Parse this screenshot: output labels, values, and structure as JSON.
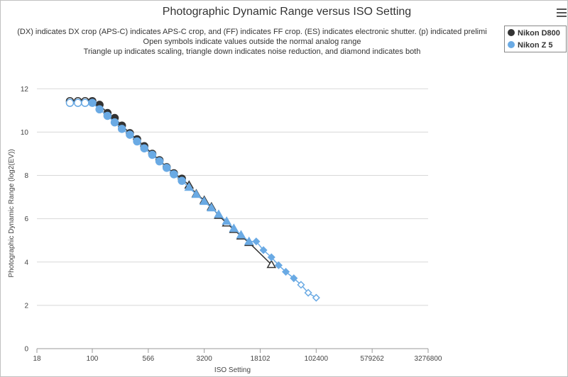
{
  "title": "Photographic Dynamic Range versus ISO Setting",
  "subtitle_lines": [
    "(DX) indicates DX crop (APS-C) indicates APS-C crop, and (FF) indicates FF crop. (ES) indicates electronic shutter. (p) indicated prelimi",
    "Open symbols indicate values outside the normal analog range",
    "Triangle up indicates scaling, triangle down indicates noise reduction, and diamond indicates both"
  ],
  "menu_icon": "hamburger-menu-icon",
  "legend": [
    {
      "label": "Nikon D800",
      "color": "#333333"
    },
    {
      "label": "Nikon Z 5",
      "color": "#6aaae4"
    }
  ],
  "chart_data": {
    "type": "scatter",
    "title": "Photographic Dynamic Range versus ISO Setting",
    "xlabel": "ISO Setting",
    "ylabel": "Photographic Dynamic Range (log2(EV))",
    "x_scale": "log2",
    "x_ticks": [
      18,
      100,
      566,
      3200,
      18102,
      102400,
      579262,
      3276800
    ],
    "y_ticks": [
      0,
      2,
      4,
      6,
      8,
      10,
      12
    ],
    "ylim": [
      0,
      12.5
    ],
    "grid": true,
    "legend_position": "top-right",
    "series": [
      {
        "name": "Nikon D800",
        "color": "#333333",
        "points": [
          {
            "x": 50,
            "y": 11.43,
            "m": "o-open"
          },
          {
            "x": 64,
            "y": 11.43,
            "m": "o-open"
          },
          {
            "x": 80,
            "y": 11.43,
            "m": "o-open"
          },
          {
            "x": 100,
            "y": 11.43,
            "m": "o"
          },
          {
            "x": 125,
            "y": 11.26,
            "m": "o"
          },
          {
            "x": 160,
            "y": 10.88,
            "m": "o"
          },
          {
            "x": 200,
            "y": 10.65,
            "m": "o"
          },
          {
            "x": 250,
            "y": 10.3,
            "m": "o"
          },
          {
            "x": 320,
            "y": 9.95,
            "m": "o"
          },
          {
            "x": 400,
            "y": 9.67,
            "m": "o"
          },
          {
            "x": 500,
            "y": 9.35,
            "m": "o"
          },
          {
            "x": 640,
            "y": 9.0,
            "m": "o"
          },
          {
            "x": 800,
            "y": 8.7,
            "m": "o"
          },
          {
            "x": 1000,
            "y": 8.38,
            "m": "o"
          },
          {
            "x": 1250,
            "y": 8.1,
            "m": "o"
          },
          {
            "x": 1600,
            "y": 7.85,
            "m": "o"
          },
          {
            "x": 2000,
            "y": 7.55,
            "m": "tri-up-open"
          },
          {
            "x": 2500,
            "y": 7.15,
            "m": "tri-up-open"
          },
          {
            "x": 3200,
            "y": 6.85,
            "m": "tri-up-open"
          },
          {
            "x": 4000,
            "y": 6.55,
            "m": "tri-up-open"
          },
          {
            "x": 5000,
            "y": 6.15,
            "m": "tri-up-open"
          },
          {
            "x": 6400,
            "y": 5.8,
            "m": "tri-up-open"
          },
          {
            "x": 8000,
            "y": 5.5,
            "m": "tri-up-open"
          },
          {
            "x": 10000,
            "y": 5.2,
            "m": "tri-up-open"
          },
          {
            "x": 12800,
            "y": 4.9,
            "m": "tri-up-open"
          },
          {
            "x": 25600,
            "y": 3.88,
            "m": "tri-up-open"
          }
        ]
      },
      {
        "name": "Nikon Z 5",
        "color": "#6aaae4",
        "points": [
          {
            "x": 50,
            "y": 11.35,
            "m": "o-open"
          },
          {
            "x": 64,
            "y": 11.35,
            "m": "o-open"
          },
          {
            "x": 80,
            "y": 11.35,
            "m": "o-open"
          },
          {
            "x": 100,
            "y": 11.35,
            "m": "o"
          },
          {
            "x": 125,
            "y": 11.05,
            "m": "o"
          },
          {
            "x": 160,
            "y": 10.75,
            "m": "o"
          },
          {
            "x": 200,
            "y": 10.45,
            "m": "o"
          },
          {
            "x": 250,
            "y": 10.15,
            "m": "o"
          },
          {
            "x": 320,
            "y": 9.88,
            "m": "o"
          },
          {
            "x": 400,
            "y": 9.57,
            "m": "o"
          },
          {
            "x": 500,
            "y": 9.25,
            "m": "o"
          },
          {
            "x": 640,
            "y": 8.95,
            "m": "o"
          },
          {
            "x": 800,
            "y": 8.65,
            "m": "o"
          },
          {
            "x": 1000,
            "y": 8.35,
            "m": "o"
          },
          {
            "x": 1250,
            "y": 8.05,
            "m": "o"
          },
          {
            "x": 1600,
            "y": 7.75,
            "m": "o"
          },
          {
            "x": 2000,
            "y": 7.45,
            "m": "tri-up"
          },
          {
            "x": 2500,
            "y": 7.12,
            "m": "tri-up"
          },
          {
            "x": 3200,
            "y": 6.8,
            "m": "tri-up"
          },
          {
            "x": 4000,
            "y": 6.5,
            "m": "tri-up"
          },
          {
            "x": 5000,
            "y": 6.2,
            "m": "tri-up"
          },
          {
            "x": 6400,
            "y": 5.88,
            "m": "tri-up"
          },
          {
            "x": 8000,
            "y": 5.55,
            "m": "tri-up"
          },
          {
            "x": 10000,
            "y": 5.25,
            "m": "tri-up"
          },
          {
            "x": 12800,
            "y": 4.95,
            "m": "tri-up"
          },
          {
            "x": 16000,
            "y": 4.95,
            "m": "diamond"
          },
          {
            "x": 20000,
            "y": 4.55,
            "m": "diamond"
          },
          {
            "x": 25600,
            "y": 4.22,
            "m": "diamond"
          },
          {
            "x": 32000,
            "y": 3.85,
            "m": "diamond"
          },
          {
            "x": 40000,
            "y": 3.55,
            "m": "diamond"
          },
          {
            "x": 51200,
            "y": 3.25,
            "m": "diamond"
          },
          {
            "x": 64000,
            "y": 2.95,
            "m": "diamond-open"
          },
          {
            "x": 80000,
            "y": 2.58,
            "m": "diamond-open"
          },
          {
            "x": 102400,
            "y": 2.35,
            "m": "diamond-open"
          }
        ]
      }
    ]
  }
}
